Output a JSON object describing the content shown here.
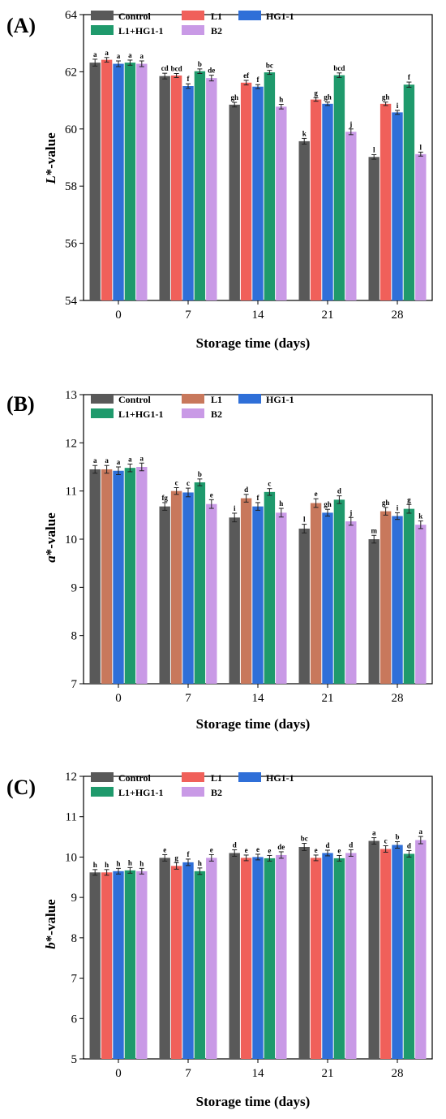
{
  "chart_data": [
    {
      "type": "bar",
      "panel_label": "(A)",
      "categories": [
        "0",
        "7",
        "14",
        "21",
        "28"
      ],
      "xlabel": "Storage time (days)",
      "ylabel_prefix": "L",
      "ylabel_suffix": "*-value",
      "ylim": [
        54,
        64
      ],
      "yticks": [
        54,
        56,
        58,
        60,
        62,
        64
      ],
      "series": [
        {
          "name": "Control",
          "color": "#595959",
          "values": [
            62.32,
            61.85,
            60.85,
            59.57,
            59.02
          ],
          "errors": [
            0.12,
            0.1,
            0.08,
            0.1,
            0.08
          ],
          "labels": [
            "a",
            "cd",
            "gh",
            "k",
            "l"
          ]
        },
        {
          "name": "L1",
          "color": "#f0605a",
          "values": [
            62.42,
            61.87,
            61.62,
            61.03,
            60.88
          ],
          "errors": [
            0.08,
            0.07,
            0.08,
            0.06,
            0.06
          ],
          "labels": [
            "a",
            "bcd",
            "ef",
            "g",
            "gh"
          ]
        },
        {
          "name": "HG1-1",
          "color": "#2f6fd8",
          "values": [
            62.28,
            61.5,
            61.48,
            60.88,
            60.58
          ],
          "errors": [
            0.1,
            0.08,
            0.07,
            0.06,
            0.07
          ],
          "labels": [
            "a",
            "f",
            "f",
            "gh",
            "i"
          ]
        },
        {
          "name": "L1+HG1-1",
          "color": "#1f9a6c",
          "values": [
            62.32,
            62.02,
            61.98,
            61.88,
            61.55
          ],
          "errors": [
            0.09,
            0.08,
            0.07,
            0.08,
            0.09
          ],
          "labels": [
            "a",
            "b",
            "bc",
            "bcd",
            "f"
          ]
        },
        {
          "name": "B2",
          "color": "#c99ae6",
          "values": [
            62.28,
            61.78,
            60.78,
            59.9,
            59.12
          ],
          "errors": [
            0.1,
            0.1,
            0.08,
            0.1,
            0.07
          ],
          "labels": [
            "a",
            "de",
            "h",
            "j",
            "l"
          ]
        }
      ]
    },
    {
      "type": "bar",
      "panel_label": "(B)",
      "categories": [
        "0",
        "7",
        "14",
        "21",
        "28"
      ],
      "xlabel": "Storage time (days)",
      "ylabel_prefix": "a",
      "ylabel_suffix": "*-value",
      "ylim": [
        7,
        13
      ],
      "yticks": [
        7,
        8,
        9,
        10,
        11,
        12,
        13
      ],
      "series": [
        {
          "name": "Control",
          "color": "#595959",
          "values": [
            11.45,
            10.68,
            10.45,
            10.22,
            10.0
          ],
          "errors": [
            0.08,
            0.08,
            0.09,
            0.09,
            0.08
          ],
          "labels": [
            "a",
            "fg",
            "i",
            "l",
            "m"
          ]
        },
        {
          "name": "L1",
          "color": "#c8785c",
          "values": [
            11.45,
            11.0,
            10.85,
            10.75,
            10.58
          ],
          "errors": [
            0.08,
            0.07,
            0.08,
            0.09,
            0.08
          ],
          "labels": [
            "a",
            "c",
            "d",
            "e",
            "gh"
          ]
        },
        {
          "name": "HG1-1",
          "color": "#2f6fd8",
          "values": [
            11.42,
            10.97,
            10.68,
            10.55,
            10.48
          ],
          "errors": [
            0.08,
            0.09,
            0.08,
            0.07,
            0.07
          ],
          "labels": [
            "a",
            "c",
            "f",
            "gh",
            "i"
          ]
        },
        {
          "name": "L1+HG1-1",
          "color": "#1f9a6c",
          "values": [
            11.48,
            11.18,
            10.98,
            10.82,
            10.63
          ],
          "errors": [
            0.08,
            0.07,
            0.07,
            0.08,
            0.09
          ],
          "labels": [
            "a",
            "b",
            "c",
            "d",
            "g"
          ]
        },
        {
          "name": "B2",
          "color": "#c99ae6",
          "values": [
            11.5,
            10.73,
            10.55,
            10.37,
            10.3
          ],
          "errors": [
            0.08,
            0.09,
            0.09,
            0.08,
            0.08
          ],
          "labels": [
            "a",
            "e",
            "h",
            "j",
            "k"
          ]
        }
      ]
    },
    {
      "type": "bar",
      "panel_label": "(C)",
      "categories": [
        "0",
        "7",
        "14",
        "21",
        "28"
      ],
      "xlabel": "Storage time (days)",
      "ylabel_prefix": "b",
      "ylabel_suffix": "*-value",
      "ylim": [
        5,
        12
      ],
      "yticks": [
        5,
        6,
        7,
        8,
        9,
        10,
        11,
        12
      ],
      "series": [
        {
          "name": "Control",
          "color": "#595959",
          "values": [
            9.62,
            9.98,
            10.1,
            10.25,
            10.4
          ],
          "errors": [
            0.07,
            0.08,
            0.08,
            0.09,
            0.08
          ],
          "labels": [
            "h",
            "e",
            "d",
            "bc",
            "a"
          ]
        },
        {
          "name": "L1",
          "color": "#f0605a",
          "values": [
            9.62,
            9.78,
            9.98,
            9.98,
            10.2
          ],
          "errors": [
            0.07,
            0.08,
            0.07,
            0.07,
            0.08
          ],
          "labels": [
            "h",
            "g",
            "e",
            "e",
            "c"
          ]
        },
        {
          "name": "HG1-1",
          "color": "#2f6fd8",
          "values": [
            9.65,
            9.87,
            10.0,
            10.1,
            10.3
          ],
          "errors": [
            0.07,
            0.08,
            0.07,
            0.07,
            0.08
          ],
          "labels": [
            "h",
            "f",
            "e",
            "d",
            "b"
          ]
        },
        {
          "name": "L1+HG1-1",
          "color": "#1f9a6c",
          "values": [
            9.67,
            9.65,
            9.97,
            9.97,
            10.08
          ],
          "errors": [
            0.07,
            0.08,
            0.07,
            0.07,
            0.08
          ],
          "labels": [
            "h",
            "h",
            "e",
            "e",
            "d"
          ]
        },
        {
          "name": "B2",
          "color": "#c99ae6",
          "values": [
            9.65,
            9.98,
            10.05,
            10.1,
            10.42
          ],
          "errors": [
            0.07,
            0.08,
            0.08,
            0.08,
            0.09
          ],
          "labels": [
            "h",
            "e",
            "de",
            "d",
            "a"
          ]
        }
      ]
    }
  ]
}
